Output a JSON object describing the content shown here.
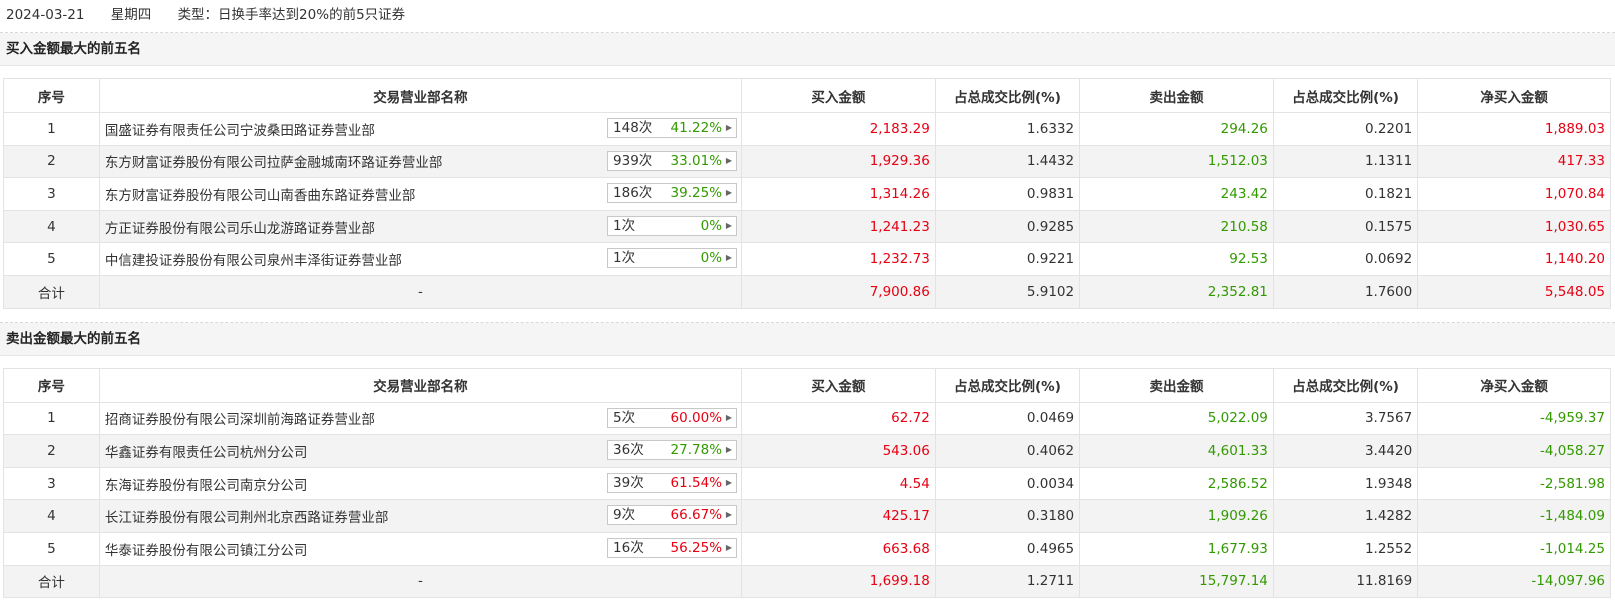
{
  "header": {
    "date": "2024-03-21",
    "weekday": "星期四",
    "type_text": "类型：日换手率达到20%的前5只证券"
  },
  "columns": [
    "序号",
    "交易营业部名称",
    "买入金额",
    "占总成交比例(%)",
    "卖出金额",
    "占总成交比例(%)",
    "净买入金额"
  ],
  "colors": {
    "up": "#e60012",
    "down": "#329900"
  },
  "sections": [
    {
      "title": "买入金额最大的前五名",
      "rows": [
        {
          "idx": "1",
          "name": "国盛证券有限责任公司宁波桑田路证券营业部",
          "count": "148次",
          "pct": "41.22%",
          "pct_color": "green",
          "buy": "2,183.29",
          "buy_ratio": "1.6332",
          "sell": "294.26",
          "sell_ratio": "0.2201",
          "net": "1,889.03",
          "net_color": "red"
        },
        {
          "idx": "2",
          "name": "东方财富证券股份有限公司拉萨金融城南环路证券营业部",
          "count": "939次",
          "pct": "33.01%",
          "pct_color": "green",
          "buy": "1,929.36",
          "buy_ratio": "1.4432",
          "sell": "1,512.03",
          "sell_ratio": "1.1311",
          "net": "417.33",
          "net_color": "red"
        },
        {
          "idx": "3",
          "name": "东方财富证券股份有限公司山南香曲东路证券营业部",
          "count": "186次",
          "pct": "39.25%",
          "pct_color": "green",
          "buy": "1,314.26",
          "buy_ratio": "0.9831",
          "sell": "243.42",
          "sell_ratio": "0.1821",
          "net": "1,070.84",
          "net_color": "red"
        },
        {
          "idx": "4",
          "name": "方正证券股份有限公司乐山龙游路证券营业部",
          "count": "1次",
          "pct": "0%",
          "pct_color": "green",
          "buy": "1,241.23",
          "buy_ratio": "0.9285",
          "sell": "210.58",
          "sell_ratio": "0.1575",
          "net": "1,030.65",
          "net_color": "red"
        },
        {
          "idx": "5",
          "name": "中信建投证券股份有限公司泉州丰泽街证券营业部",
          "count": "1次",
          "pct": "0%",
          "pct_color": "green",
          "buy": "1,232.73",
          "buy_ratio": "0.9221",
          "sell": "92.53",
          "sell_ratio": "0.0692",
          "net": "1,140.20",
          "net_color": "red"
        }
      ],
      "total": {
        "label": "合计",
        "name": "-",
        "buy": "7,900.86",
        "buy_ratio": "5.9102",
        "sell": "2,352.81",
        "sell_ratio": "1.7600",
        "net": "5,548.05",
        "net_color": "red"
      }
    },
    {
      "title": "卖出金额最大的前五名",
      "rows": [
        {
          "idx": "1",
          "name": "招商证券股份有限公司深圳前海路证券营业部",
          "count": "5次",
          "pct": "60.00%",
          "pct_color": "red",
          "buy": "62.72",
          "buy_ratio": "0.0469",
          "sell": "5,022.09",
          "sell_ratio": "3.7567",
          "net": "-4,959.37",
          "net_color": "green"
        },
        {
          "idx": "2",
          "name": "华鑫证券有限责任公司杭州分公司",
          "count": "36次",
          "pct": "27.78%",
          "pct_color": "green",
          "buy": "543.06",
          "buy_ratio": "0.4062",
          "sell": "4,601.33",
          "sell_ratio": "3.4420",
          "net": "-4,058.27",
          "net_color": "green"
        },
        {
          "idx": "3",
          "name": "东海证券股份有限公司南京分公司",
          "count": "39次",
          "pct": "61.54%",
          "pct_color": "red",
          "buy": "4.54",
          "buy_ratio": "0.0034",
          "sell": "2,586.52",
          "sell_ratio": "1.9348",
          "net": "-2,581.98",
          "net_color": "green"
        },
        {
          "idx": "4",
          "name": "长江证券股份有限公司荆州北京西路证券营业部",
          "count": "9次",
          "pct": "66.67%",
          "pct_color": "red",
          "buy": "425.17",
          "buy_ratio": "0.3180",
          "sell": "1,909.26",
          "sell_ratio": "1.4282",
          "net": "-1,484.09",
          "net_color": "green"
        },
        {
          "idx": "5",
          "name": "华泰证券股份有限公司镇江分公司",
          "count": "16次",
          "pct": "56.25%",
          "pct_color": "red",
          "buy": "663.68",
          "buy_ratio": "0.4965",
          "sell": "1,677.93",
          "sell_ratio": "1.2552",
          "net": "-1,014.25",
          "net_color": "green"
        }
      ],
      "total": {
        "label": "合计",
        "name": "-",
        "buy": "1,699.18",
        "buy_ratio": "1.2711",
        "sell": "15,797.14",
        "sell_ratio": "11.8169",
        "net": "-14,097.96",
        "net_color": "green"
      }
    }
  ]
}
